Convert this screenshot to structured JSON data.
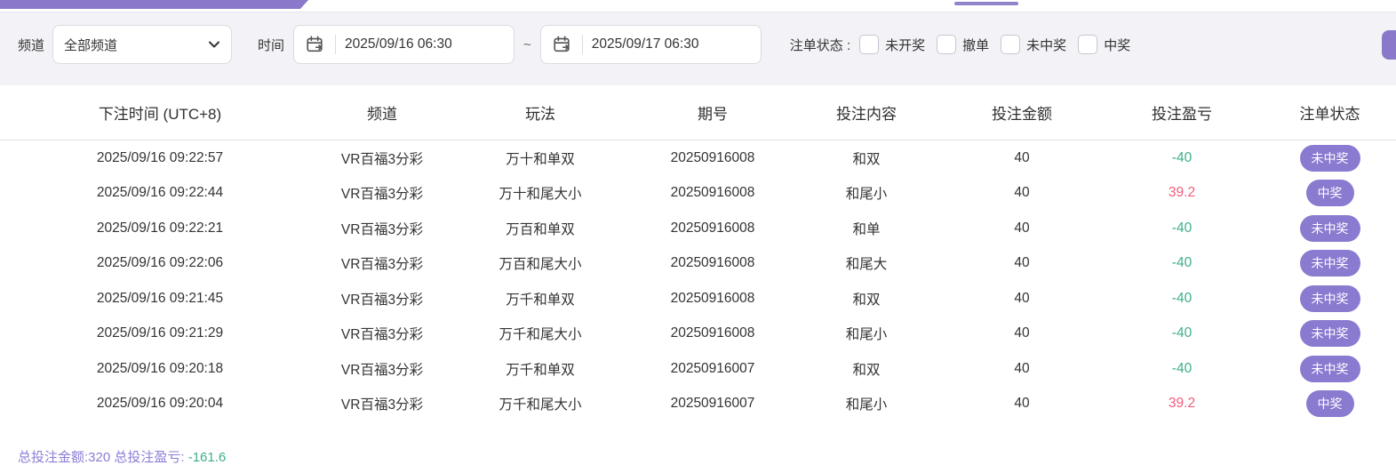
{
  "topbar": {
    "accent_color": "#8a79ca",
    "tab_indicator_color": "#8d85c8"
  },
  "filters": {
    "channel_label": "频道",
    "channel_value": "全部频道",
    "time_label": "时间",
    "time_from": "2025/09/16 06:30",
    "range_separator": "~",
    "time_to": "2025/09/17 06:30",
    "status_label": "注单状态 :",
    "status_options": [
      {
        "label": "未开奖",
        "checked": false
      },
      {
        "label": "撤单",
        "checked": false
      },
      {
        "label": "未中奖",
        "checked": false
      },
      {
        "label": "中奖",
        "checked": false
      }
    ]
  },
  "table": {
    "columns": [
      "下注时间 (UTC+8)",
      "频道",
      "玩法",
      "期号",
      "投注内容",
      "投注金额",
      "投注盈亏",
      "注单状态"
    ],
    "rows": [
      {
        "time": "2025/09/16 09:22:57",
        "channel": "VR百福3分彩",
        "play": "万十和单双",
        "issue": "20250916008",
        "content": "和双",
        "amount": "40",
        "profit": "-40",
        "profit_type": "loss",
        "status": "未中奖"
      },
      {
        "time": "2025/09/16 09:22:44",
        "channel": "VR百福3分彩",
        "play": "万十和尾大小",
        "issue": "20250916008",
        "content": "和尾小",
        "amount": "40",
        "profit": "39.2",
        "profit_type": "win",
        "status": "中奖"
      },
      {
        "time": "2025/09/16 09:22:21",
        "channel": "VR百福3分彩",
        "play": "万百和单双",
        "issue": "20250916008",
        "content": "和单",
        "amount": "40",
        "profit": "-40",
        "profit_type": "loss",
        "status": "未中奖"
      },
      {
        "time": "2025/09/16 09:22:06",
        "channel": "VR百福3分彩",
        "play": "万百和尾大小",
        "issue": "20250916008",
        "content": "和尾大",
        "amount": "40",
        "profit": "-40",
        "profit_type": "loss",
        "status": "未中奖"
      },
      {
        "time": "2025/09/16 09:21:45",
        "channel": "VR百福3分彩",
        "play": "万千和单双",
        "issue": "20250916008",
        "content": "和双",
        "amount": "40",
        "profit": "-40",
        "profit_type": "loss",
        "status": "未中奖"
      },
      {
        "time": "2025/09/16 09:21:29",
        "channel": "VR百福3分彩",
        "play": "万千和尾大小",
        "issue": "20250916008",
        "content": "和尾小",
        "amount": "40",
        "profit": "-40",
        "profit_type": "loss",
        "status": "未中奖"
      },
      {
        "time": "2025/09/16 09:20:18",
        "channel": "VR百福3分彩",
        "play": "万千和单双",
        "issue": "20250916007",
        "content": "和双",
        "amount": "40",
        "profit": "-40",
        "profit_type": "loss",
        "status": "未中奖"
      },
      {
        "time": "2025/09/16 09:20:04",
        "channel": "VR百福3分彩",
        "play": "万千和尾大小",
        "issue": "20250916007",
        "content": "和尾小",
        "amount": "40",
        "profit": "39.2",
        "profit_type": "win",
        "status": "中奖"
      }
    ]
  },
  "summary": {
    "total_amount_label": "总投注金额:",
    "total_amount": "320",
    "total_profit_label": "总投注盈亏:",
    "total_profit": "-161.6"
  },
  "colors": {
    "accent": "#8a79ca",
    "badge": "#8a7ad0",
    "loss_green": "#3fae8c",
    "win_red": "#f25c7c",
    "summary_purple": "#8c7cd5"
  }
}
